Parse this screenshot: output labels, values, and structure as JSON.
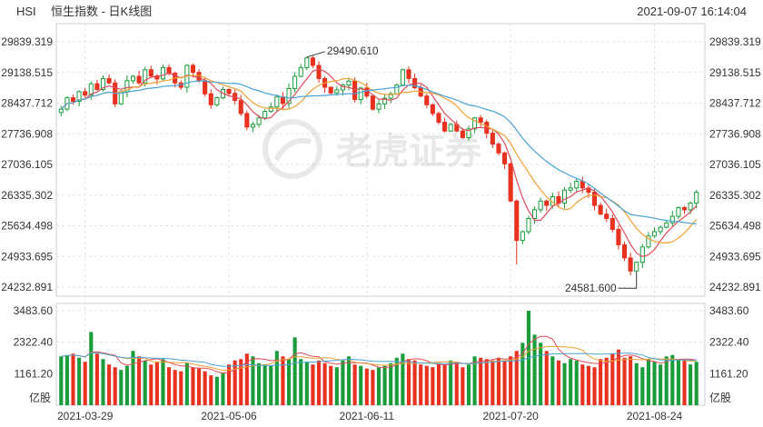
{
  "header": {
    "symbol": "HSI",
    "name": "恒生指数 - 日K线图",
    "timestamp": "2021-09-07 16:14:04"
  },
  "watermark": "老虎证券",
  "colors": {
    "up": "#1a9c3a",
    "down": "#e8311e",
    "ma5": "#e04d5a",
    "ma10": "#f0a035",
    "ma20": "#4aa3d6",
    "grid": "#e3e3e3",
    "text": "#333333"
  },
  "chart_data": {
    "type": "candlestick",
    "price_axis": {
      "min": 24232.891,
      "max": 29839.319,
      "ticks": [
        "29839.319",
        "29138.515",
        "28437.712",
        "27736.908",
        "27036.105",
        "26335.302",
        "25634.498",
        "24933.695",
        "24232.891"
      ]
    },
    "volume_axis": {
      "max": 3483.6,
      "ticks": [
        "3483.60",
        "2322.40",
        "1161.20"
      ],
      "unit": "亿股"
    },
    "x_labels": [
      "2021-03-29",
      "2021-05-06",
      "2021-06-11",
      "2021-07-20",
      "2021-08-24"
    ],
    "annotations": [
      {
        "text": "29490.610",
        "value": 29490.61,
        "index": 41
      },
      {
        "text": "24581.600",
        "value": 24581.6,
        "index": 96
      }
    ],
    "closes": [
      28300,
      28560,
      28480,
      28700,
      28620,
      28880,
      28750,
      29000,
      28900,
      28420,
      28700,
      28950,
      29050,
      28900,
      29200,
      29060,
      28990,
      29250,
      29120,
      28900,
      28800,
      29300,
      29140,
      28950,
      28650,
      28400,
      28560,
      28750,
      28660,
      28500,
      28200,
      27890,
      27950,
      28100,
      28250,
      28350,
      28580,
      28430,
      28770,
      29050,
      29250,
      29470,
      29300,
      29000,
      28800,
      28670,
      28740,
      28850,
      28940,
      28520,
      28780,
      28600,
      28300,
      28420,
      28550,
      28650,
      28850,
      29200,
      29000,
      28790,
      28600,
      28400,
      28200,
      28000,
      27800,
      27950,
      27800,
      27650,
      27850,
      28100,
      28000,
      27750,
      27500,
      27300,
      27050,
      26200,
      25300,
      25500,
      25800,
      26000,
      26200,
      26100,
      26300,
      26150,
      26450,
      26500,
      26650,
      26500,
      26400,
      26100,
      25900,
      25800,
      25550,
      25200,
      24900,
      24600,
      24800,
      25150,
      25400,
      25500,
      25600,
      25700,
      25850,
      26050,
      26000,
      26150,
      26400
    ],
    "volumes": [
      1800,
      1850,
      1900,
      1750,
      1600,
      2700,
      1900,
      1700,
      1500,
      1400,
      1300,
      1450,
      2000,
      1800,
      1650,
      1500,
      1600,
      1700,
      1400,
      1300,
      1250,
      1550,
      1400,
      1350,
      1250,
      1100,
      1050,
      1200,
      1500,
      1650,
      1700,
      1900,
      1800,
      1550,
      1500,
      1450,
      2000,
      1800,
      1700,
      2500,
      1700,
      1600,
      1500,
      1650,
      1550,
      1450,
      1400,
      1650,
      1800,
      1500,
      1450,
      1350,
      1300,
      1400,
      1450,
      1550,
      1750,
      1900,
      1700,
      1650,
      1500,
      1450,
      1400,
      1550,
      1500,
      1650,
      1600,
      1400,
      1500,
      1800,
      1750,
      1700,
      1650,
      1750,
      1650,
      1800,
      2000,
      2300,
      3483,
      2600,
      2300,
      2000,
      1800,
      1650,
      1550,
      1700,
      1650,
      1500,
      1450,
      1400,
      1700,
      1750,
      1900,
      2050,
      1750,
      1800,
      1550,
      1400,
      1700,
      1600,
      1500,
      1800,
      1850,
      1700,
      1650,
      1500,
      1600
    ]
  }
}
